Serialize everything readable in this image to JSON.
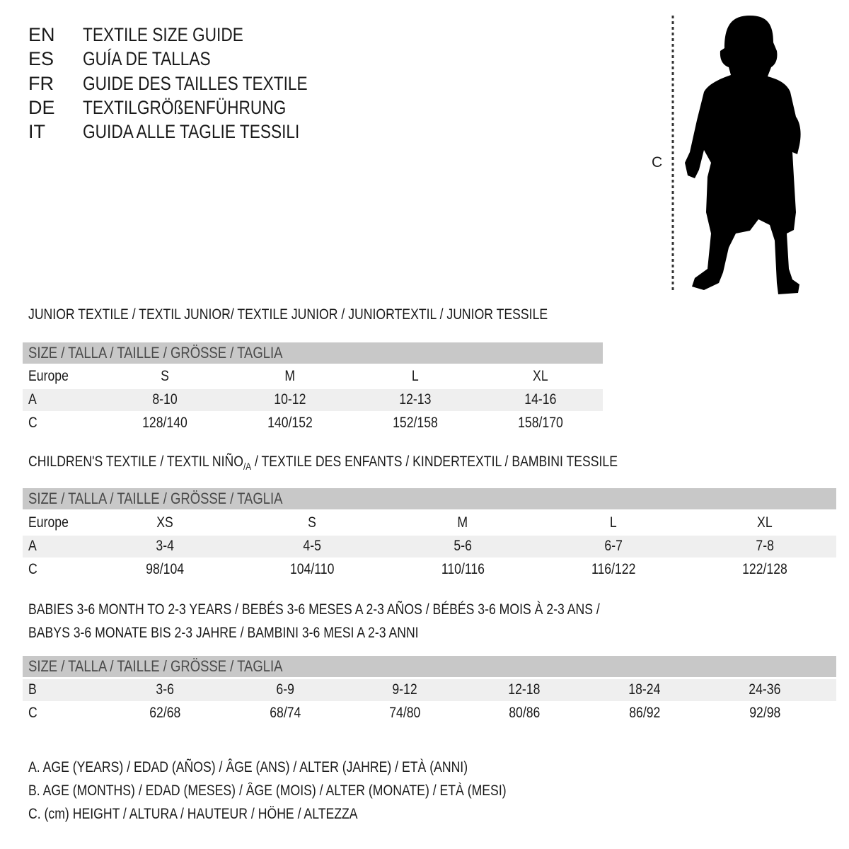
{
  "header": {
    "rows": [
      {
        "code": "EN",
        "title": "TEXTILE SIZE GUIDE"
      },
      {
        "code": "ES",
        "title": "GUÍA DE TALLAS"
      },
      {
        "code": "FR",
        "title": "GUIDE DES TAILLES TEXTILE"
      },
      {
        "code": "DE",
        "title": "TEXTILGRÖßENFÜHRUNG"
      },
      {
        "code": "IT",
        "title": "GUIDA ALLE TAGLIE TESSILI"
      }
    ]
  },
  "figure": {
    "measure_label": "C",
    "icon": "child-silhouette-icon"
  },
  "size_header": "SIZE / TALLA / TAILLE / GRÖSSE / TAGLIA",
  "junior": {
    "title": "JUNIOR TEXTILE / TEXTIL JUNIOR/ TEXTILE JUNIOR / JUNIORTEXTIL / JUNIOR TESSILE",
    "rows": [
      {
        "label": "Europe",
        "values": [
          "S",
          "M",
          "L",
          "XL"
        ]
      },
      {
        "label": "A",
        "values": [
          "8-10",
          "10-12",
          "12-13",
          "14-16"
        ]
      },
      {
        "label": "C",
        "values": [
          "128/140",
          "140/152",
          "152/158",
          "158/170"
        ]
      }
    ]
  },
  "children": {
    "title_before": "CHILDREN'S TEXTILE / TEXTIL NIÑO",
    "title_sub": "/A",
    "title_after": " / TEXTILE DES ENFANTS / KINDERTEXTIL / BAMBINI TESSILE",
    "rows": [
      {
        "label": "Europe",
        "values": [
          "XS",
          "S",
          "M",
          "L",
          "XL"
        ]
      },
      {
        "label": "A",
        "values": [
          "3-4",
          "4-5",
          "5-6",
          "6-7",
          "7-8"
        ]
      },
      {
        "label": "C",
        "values": [
          "98/104",
          "104/110",
          "110/116",
          "116/122",
          "122/128"
        ]
      }
    ]
  },
  "babies": {
    "title_line1": "BABIES 3-6 MONTH TO 2-3 YEARS / BEBÉS 3-6 MESES A 2-3 AÑOS / BÉBÉS 3-6 MOIS À 2-3 ANS /",
    "title_line2": "BABYS 3-6 MONATE BIS 2-3 JAHRE / BAMBINI 3-6 MESI A 2-3 ANNI",
    "rows": [
      {
        "label": "B",
        "values": [
          "3-6",
          "6-9",
          "9-12",
          "12-18",
          "18-24",
          "24-36"
        ]
      },
      {
        "label": "C",
        "values": [
          "62/68",
          "68/74",
          "74/80",
          "80/86",
          "86/92",
          "92/98"
        ]
      }
    ]
  },
  "legend": [
    "A. AGE (YEARS) / EDAD (AÑOS) / ÂGE (ANS) / ALTER (JAHRE) / ETÀ (ANNI)",
    "B. AGE (MONTHS) / EDAD (MESES) / ÂGE (MOIS) / ALTER (MONATE) / ETÀ (MESI)",
    "C. (cm) HEIGHT / ALTURA / HAUTEUR / HÖHE / ALTEZZA"
  ],
  "colors": {
    "band": "#c8c8c8",
    "stripe": "#efefef",
    "text": "#1a1a1a"
  }
}
